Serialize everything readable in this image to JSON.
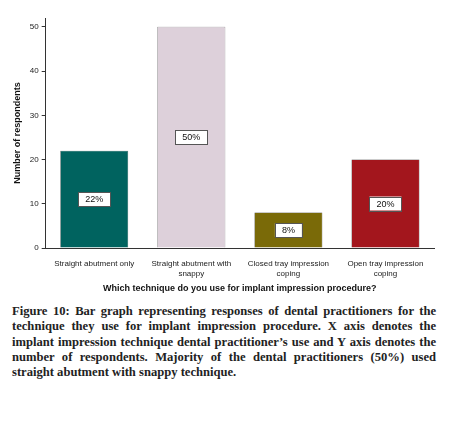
{
  "chart_data": {
    "type": "bar",
    "caption": "Figure 10: Bar graph representing responses of dental practitioners for the technique they use for implant impression procedure. X axis denotes the implant impression technique dental practitioner’s use and Y axis denotes the number of respondents. Majority of the dental practitioners (50%) used straight abutment with snappy technique.",
    "x_label": "Which technique do you use for implant impression procedure?",
    "y_label": "Number of respondents",
    "categories": [
      "Straight abutment only",
      "Straight abutment with snappy",
      "Closed tray impression coping",
      "Open tray impression coping"
    ],
    "values": [
      22,
      50,
      8,
      20
    ],
    "value_labels": [
      "22%",
      "50%",
      "8%",
      "20%"
    ],
    "colors": [
      "#00635f",
      "#ddd0da",
      "#7a6a08",
      "#a3161d"
    ],
    "ylim": [
      0,
      52
    ],
    "yticks": [
      0,
      10,
      20,
      30,
      40,
      50
    ],
    "grid": false,
    "data_labels": true
  }
}
